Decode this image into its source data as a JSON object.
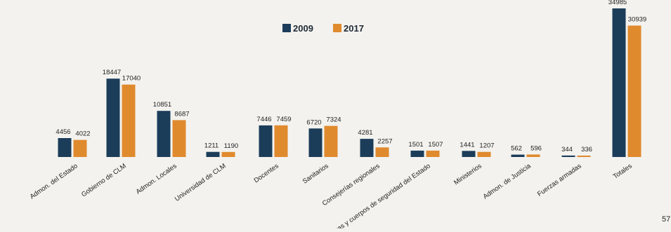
{
  "chart_data": {
    "type": "bar",
    "title": "",
    "xlabel": "",
    "ylabel": "",
    "categories": [
      "Admon. del Estado",
      "Gobierno de CLM",
      "Admon. Locales",
      "Universidad de CLM",
      "Docentes",
      "Sanitarios",
      "Consejerías regionales",
      "Fuerzas y cuerpos de seguridad del Estado",
      "Ministerios",
      "Admon. de Justicia",
      "Fuerzas armadas",
      "Totales"
    ],
    "series": [
      {
        "name": "2009",
        "color": "#1b3d5a",
        "values": [
          4456,
          18447,
          10851,
          1211,
          7446,
          6720,
          4281,
          1501,
          1441,
          562,
          344,
          34985
        ]
      },
      {
        "name": "2017",
        "color": "#e08a2e",
        "values": [
          4022,
          17040,
          8687,
          1190,
          7459,
          7324,
          2257,
          1507,
          1207,
          596,
          336,
          30939
        ]
      }
    ],
    "value_labels": {
      "2009": [
        "4456",
        "18447",
        "10851",
        "1211",
        "7446",
        "6720",
        "4281",
        "1501",
        "1441",
        "562",
        "344",
        "34985"
      ],
      "2017": [
        "4022",
        "17040",
        "8687",
        "1190",
        "7459",
        "7324",
        "2257",
        "1507",
        "1207",
        "596",
        "336",
        "30939"
      ]
    },
    "legend_position": "top-center",
    "grid": false
  },
  "page_number": "57"
}
